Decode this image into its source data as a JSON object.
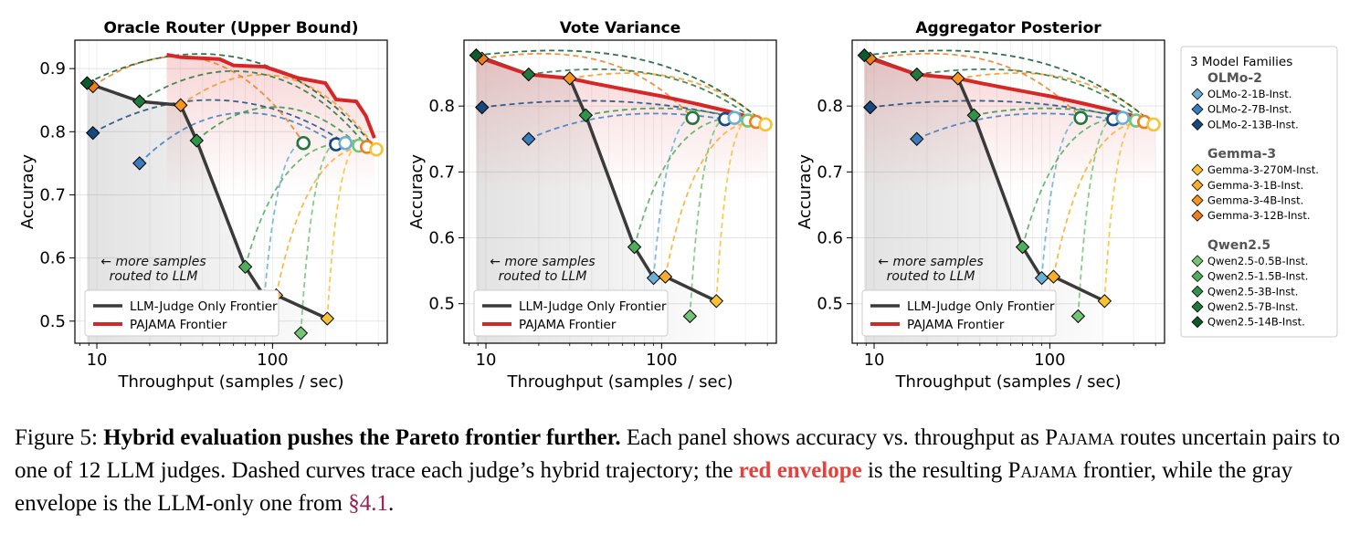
{
  "chart_data": [
    {
      "type": "line",
      "title": "Oracle Router (Upper Bound)",
      "xlabel": "Throughput  (samples / sec)",
      "ylabel": "Accuracy",
      "xscale": "log",
      "xlim": [
        7.5,
        450
      ],
      "ylim": [
        0.465,
        0.945
      ],
      "xticks": [
        10,
        100
      ],
      "xtick_labels": [
        "10",
        "100"
      ],
      "yticks": [
        0.5,
        0.6,
        0.7,
        0.8,
        0.9
      ],
      "ytick_labels": [
        "0.5",
        "0.6",
        "0.7",
        "0.8",
        "0.9"
      ],
      "grid": true,
      "annotation": [
        "← more samples",
        "routed to LLM"
      ],
      "legend": {
        "placement": "lower-left",
        "entries": [
          "LLM-Judge Only Frontier",
          "PAJAMA Frontier"
        ]
      },
      "llm_frontier": {
        "x": [
          8.8,
          17.5,
          30,
          37,
          70,
          90,
          105,
          205
        ],
        "y": [
          0.877,
          0.848,
          0.842,
          0.786,
          0.586,
          0.539,
          0.541,
          0.504
        ]
      },
      "pajama_frontier": {
        "x": [
          25,
          30,
          50,
          60,
          90,
          110,
          140,
          200,
          230,
          300,
          340,
          380
        ],
        "y": [
          0.922,
          0.918,
          0.915,
          0.905,
          0.903,
          0.895,
          0.885,
          0.877,
          0.851,
          0.848,
          0.825,
          0.79
        ]
      }
    },
    {
      "type": "line",
      "title": "Vote Variance",
      "xlabel": "Throughput  (samples / sec)",
      "ylabel": "Accuracy",
      "xscale": "log",
      "xlim": [
        7.5,
        450
      ],
      "ylim": [
        0.44,
        0.9
      ],
      "xticks": [
        10,
        100
      ],
      "xtick_labels": [
        "10",
        "100"
      ],
      "yticks": [
        0.5,
        0.6,
        0.7,
        0.8
      ],
      "ytick_labels": [
        "0.5",
        "0.6",
        "0.7",
        "0.8"
      ],
      "grid": true,
      "annotation": [
        "← more samples",
        "routed to LLM"
      ],
      "legend": {
        "placement": "lower-left",
        "entries": [
          "LLM-Judge Only Frontier",
          "PAJAMA Frontier"
        ]
      },
      "llm_frontier": {
        "x": [
          8.8,
          17.5,
          30,
          37,
          70,
          90,
          105,
          205
        ],
        "y": [
          0.877,
          0.848,
          0.842,
          0.786,
          0.586,
          0.539,
          0.541,
          0.504
        ]
      },
      "pajama_frontier": {
        "x": [
          8.8,
          9.5,
          17.5,
          30,
          40,
          60,
          100,
          160,
          240,
          300,
          400
        ],
        "y": [
          0.877,
          0.872,
          0.848,
          0.842,
          0.835,
          0.826,
          0.815,
          0.803,
          0.792,
          0.785,
          0.775
        ]
      }
    },
    {
      "type": "line",
      "title": "Aggregator Posterior",
      "xlabel": "Throughput  (samples / sec)",
      "ylabel": "Accuracy",
      "xscale": "log",
      "xlim": [
        7.5,
        450
      ],
      "ylim": [
        0.44,
        0.9
      ],
      "xticks": [
        10,
        100
      ],
      "xtick_labels": [
        "10",
        "100"
      ],
      "yticks": [
        0.5,
        0.6,
        0.7,
        0.8
      ],
      "ytick_labels": [
        "0.5",
        "0.6",
        "0.7",
        "0.8"
      ],
      "grid": true,
      "annotation": [
        "← more samples",
        "routed to LLM"
      ],
      "legend": {
        "placement": "lower-left",
        "entries": [
          "LLM-Judge Only Frontier",
          "PAJAMA Frontier"
        ]
      },
      "llm_frontier": {
        "x": [
          8.8,
          17.5,
          30,
          37,
          70,
          90,
          105,
          205
        ],
        "y": [
          0.877,
          0.848,
          0.842,
          0.786,
          0.586,
          0.539,
          0.541,
          0.504
        ]
      },
      "pajama_frontier": {
        "x": [
          8.8,
          9.5,
          17.5,
          30,
          40,
          60,
          100,
          160,
          240,
          300,
          400
        ],
        "y": [
          0.877,
          0.872,
          0.848,
          0.842,
          0.835,
          0.826,
          0.815,
          0.803,
          0.792,
          0.785,
          0.775
        ]
      }
    }
  ],
  "judges": [
    {
      "name": "OLMo-2-1B-Inst.",
      "family": "OLMo-2",
      "color": "#6baed6",
      "x": 90,
      "y": 0.539
    },
    {
      "name": "OLMo-2-7B-Inst.",
      "family": "OLMo-2",
      "color": "#3a7dbf",
      "x": 17.5,
      "y": 0.75
    },
    {
      "name": "OLMo-2-13B-Inst.",
      "family": "OLMo-2",
      "color": "#17497e",
      "x": 9.5,
      "y": 0.798
    },
    {
      "name": "Gemma-3-270M-Inst.",
      "family": "Gemma-3",
      "color": "#f7c331",
      "x": 205,
      "y": 0.504
    },
    {
      "name": "Gemma-3-1B-Inst.",
      "family": "Gemma-3",
      "color": "#fbad29",
      "x": 105,
      "y": 0.541
    },
    {
      "name": "Gemma-3-4B-Inst.",
      "family": "Gemma-3",
      "color": "#f7961e",
      "x": 30,
      "y": 0.842
    },
    {
      "name": "Gemma-3-12B-Inst.",
      "family": "Gemma-3",
      "color": "#f07d1a",
      "x": 9.5,
      "y": 0.872
    },
    {
      "name": "Qwen2.5-0.5B-Inst.",
      "family": "Qwen2.5",
      "color": "#74c476",
      "x": 145,
      "y": 0.481
    },
    {
      "name": "Qwen2.5-1.5B-Inst.",
      "family": "Qwen2.5",
      "color": "#4fae5c",
      "x": 70,
      "y": 0.586
    },
    {
      "name": "Qwen2.5-3B-Inst.",
      "family": "Qwen2.5",
      "color": "#2e9447",
      "x": 37,
      "y": 0.786
    },
    {
      "name": "Qwen2.5-7B-Inst.",
      "family": "Qwen2.5",
      "color": "#22773b",
      "x": 17.5,
      "y": 0.848
    },
    {
      "name": "Qwen2.5-14B-Inst.",
      "family": "Qwen2.5",
      "color": "#0d5a2c",
      "x": 8.8,
      "y": 0.877
    }
  ],
  "endpoints": [
    {
      "x": 150,
      "y": 0.782,
      "color": "#22773b"
    },
    {
      "x": 230,
      "y": 0.78,
      "color": "#17497e"
    },
    {
      "x": 260,
      "y": 0.782,
      "color": "#6baed6"
    },
    {
      "x": 310,
      "y": 0.778,
      "color": "#74c476"
    },
    {
      "x": 345,
      "y": 0.776,
      "color": "#f07d1a"
    },
    {
      "x": 390,
      "y": 0.772,
      "color": "#f7c331"
    }
  ],
  "families_legend": {
    "title": "3 Model Families",
    "groups": [
      {
        "name": "OLMo-2",
        "items": [
          "OLMo-2-1B-Inst.",
          "OLMo-2-7B-Inst.",
          "OLMo-2-13B-Inst."
        ]
      },
      {
        "name": "Gemma-3",
        "items": [
          "Gemma-3-270M-Inst.",
          "Gemma-3-1B-Inst.",
          "Gemma-3-4B-Inst.",
          "Gemma-3-12B-Inst."
        ]
      },
      {
        "name": "Qwen2.5",
        "items": [
          "Qwen2.5-0.5B-Inst.",
          "Qwen2.5-1.5B-Inst.",
          "Qwen2.5-3B-Inst.",
          "Qwen2.5-7B-Inst.",
          "Qwen2.5-14B-Inst."
        ]
      }
    ]
  },
  "colors": {
    "llm_frontier": "#3a3a3a",
    "pajama_frontier": "#d62728",
    "red_text": "#e8413c",
    "ref": "#9a1e55"
  },
  "caption": {
    "label": "Figure 5:",
    "bold": "Hybrid evaluation pushes the Pareto frontier further.",
    "text1": "Each panel shows accuracy vs. throughput as",
    "pajama1": "Pajama",
    "text2": "routes uncertain pairs to one of 12 LLM judges. Dashed curves trace each judge’s hybrid trajectory; the",
    "red": "red envelope",
    "text3": "is the resulting",
    "pajama2": "Pajama",
    "text4": "frontier, while the gray envelope is the LLM-only one from",
    "ref": "§4.1",
    "end": "."
  }
}
